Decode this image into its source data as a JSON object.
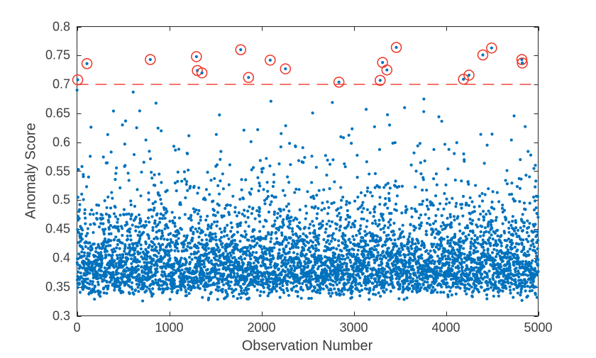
{
  "figure": {
    "background": "#ffffff",
    "axis_color": "#262626",
    "text_color": "#3d3d3d"
  },
  "chart_data": {
    "type": "scatter",
    "title": "",
    "xlabel": "Observation Number",
    "ylabel": "Anomaly Score",
    "xlim": [
      0,
      5000
    ],
    "ylim": [
      0.3,
      0.8
    ],
    "x_ticks": [
      0,
      1000,
      2000,
      3000,
      4000,
      5000
    ],
    "x_tick_labels": [
      "0",
      "1000",
      "2000",
      "3000",
      "4000",
      "5000"
    ],
    "y_ticks": [
      0.3,
      0.35,
      0.4,
      0.45,
      0.5,
      0.55,
      0.6,
      0.65,
      0.7,
      0.75,
      0.8
    ],
    "y_tick_labels": [
      "0.3",
      "0.35",
      "0.4",
      "0.45",
      "0.5",
      "0.55",
      "0.6",
      "0.65",
      "0.7",
      "0.75",
      "0.8"
    ],
    "grid": false,
    "box": true,
    "tick_dir": "in",
    "legend": "none",
    "threshold_line": {
      "y": 0.7,
      "style": "dashed",
      "dash": [
        16,
        10
      ],
      "color": "#f2564b",
      "line_width": 1.6
    },
    "series": [
      {
        "name": "anomaly-scores",
        "type": "scatter",
        "marker": "dot",
        "marker_radius": 2.1,
        "color": "#0072BD",
        "n_points": 4979,
        "x_model": {
          "kind": "sequential",
          "from": 1,
          "to": 5000
        },
        "y_model": {
          "kind": "shifted-lognormal",
          "shift": 0.315,
          "scale": 0.08,
          "sigma": 0.56,
          "clamp_min": 0.318,
          "clamp_max": 0.695,
          "seed": 7
        },
        "note": "~5000 pseudo-random scores: dense band 0.35-0.45, thinning tail up to 0.70"
      },
      {
        "name": "detected-anomalies",
        "type": "scatter",
        "marker": "open-circle",
        "ring_radius": 7,
        "ring_width": 1.5,
        "color": "#ee3526",
        "dot_color": "#0072BD",
        "points": [
          [
            8,
            0.708
          ],
          [
            108,
            0.736
          ],
          [
            795,
            0.743
          ],
          [
            1295,
            0.748
          ],
          [
            1305,
            0.724
          ],
          [
            1355,
            0.72
          ],
          [
            1775,
            0.76
          ],
          [
            1860,
            0.712
          ],
          [
            2095,
            0.742
          ],
          [
            2260,
            0.727
          ],
          [
            2840,
            0.704
          ],
          [
            3287,
            0.707
          ],
          [
            3313,
            0.738
          ],
          [
            3360,
            0.725
          ],
          [
            3462,
            0.764
          ],
          [
            4190,
            0.709
          ],
          [
            4250,
            0.716
          ],
          [
            4400,
            0.751
          ],
          [
            4495,
            0.763
          ],
          [
            4823,
            0.743
          ],
          [
            4828,
            0.737
          ]
        ]
      }
    ]
  }
}
